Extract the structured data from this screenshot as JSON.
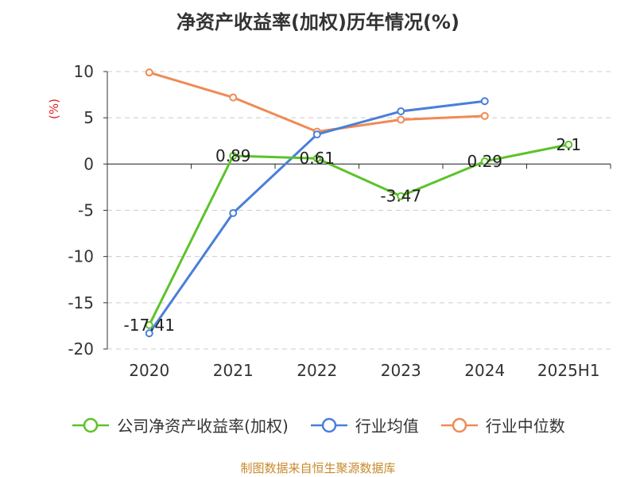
{
  "title": "净资产收益率(加权)历年情况(%)",
  "unit_label": "(%)",
  "source": "制图数据来自恒生聚源数据库",
  "chart_data": {
    "type": "line",
    "title": "净资产收益率(加权)历年情况(%)",
    "ylabel": "(%)",
    "xlabel": "",
    "categories": [
      "2020",
      "2021",
      "2022",
      "2023",
      "2024",
      "2025H1"
    ],
    "ylim": [
      -20,
      10
    ],
    "yticks": [
      10,
      5,
      0,
      -5,
      -10,
      -15,
      -20
    ],
    "grid": true,
    "legend_position": "bottom",
    "series": [
      {
        "name": "公司净资产收益率(加权)",
        "color": "#5cc32a",
        "values": [
          -17.41,
          0.89,
          0.61,
          -3.47,
          0.29,
          2.1
        ],
        "labels": [
          "-17.41",
          "0.89",
          "0.61",
          "-3.47",
          "0.29",
          "2.1"
        ]
      },
      {
        "name": "行业均值",
        "color": "#4a7fd8",
        "values": [
          -18.3,
          -5.3,
          3.2,
          5.7,
          6.8,
          null
        ]
      },
      {
        "name": "行业中位数",
        "color": "#f08a55",
        "values": [
          9.9,
          7.2,
          3.5,
          4.8,
          5.2,
          null
        ]
      }
    ]
  }
}
